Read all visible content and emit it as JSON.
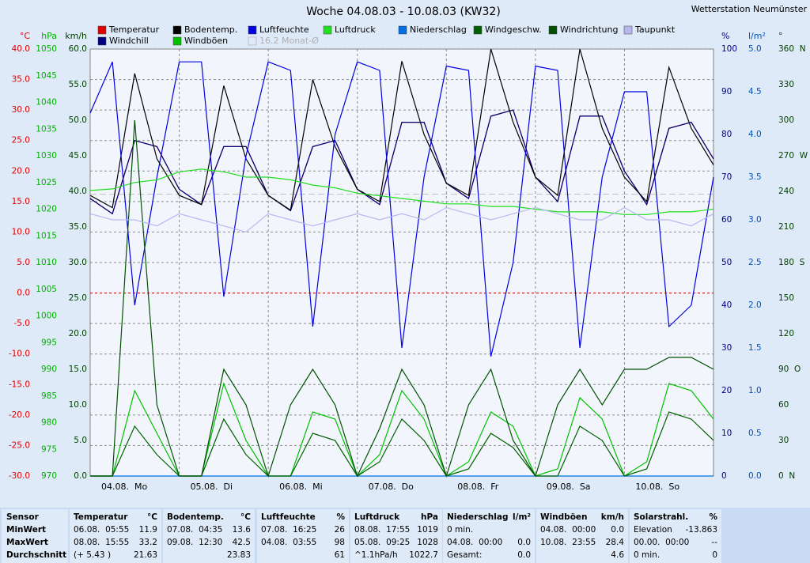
{
  "header": {
    "station": "Wetterstation Neumünster"
  },
  "chart_data": {
    "type": "line",
    "title": "Woche 04.08.03 - 10.08.03 (KW32)",
    "x": [
      0,
      6,
      12,
      18,
      24,
      30,
      36,
      42,
      48,
      54,
      60,
      66,
      72,
      78,
      84,
      90,
      96,
      102,
      108,
      114,
      120,
      126,
      132,
      138,
      144,
      150,
      156,
      162,
      168
    ],
    "xlim": [
      0,
      168
    ],
    "xticks": [
      {
        "value": 0,
        "label": "04.08.  Mo"
      },
      {
        "value": 24,
        "label": "05.08.  Di"
      },
      {
        "value": 48,
        "label": "06.08.  Mi"
      },
      {
        "value": 72,
        "label": "07.08.  Do"
      },
      {
        "value": 96,
        "label": "08.08.  Fr"
      },
      {
        "value": 120,
        "label": "09.08.  Sa"
      },
      {
        "value": 144,
        "label": "10.08.  So"
      }
    ],
    "grid": true,
    "axes": {
      "temp": {
        "label": "°C",
        "color": "#e00000",
        "lim": [
          -30,
          40
        ],
        "ticks": [
          {
            "value": -30,
            "label": "-30.0"
          },
          {
            "value": -25,
            "label": "-25.0"
          },
          {
            "value": -20,
            "label": "-20.0"
          },
          {
            "value": -15,
            "label": "-15.0"
          },
          {
            "value": -10,
            "label": "-10.0"
          },
          {
            "value": -5,
            "label": "-5.0"
          },
          {
            "value": 0,
            "label": "0.0"
          },
          {
            "value": 5,
            "label": "5.0"
          },
          {
            "value": 10,
            "label": "10.0"
          },
          {
            "value": 15,
            "label": "15.0"
          },
          {
            "value": 20,
            "label": "20.0"
          },
          {
            "value": 25,
            "label": "25.0"
          },
          {
            "value": 30,
            "label": "30.0"
          },
          {
            "value": 35,
            "label": "35.0"
          },
          {
            "value": 40,
            "label": "40.0"
          }
        ]
      },
      "hpa": {
        "label": "hPa",
        "color": "#00b000",
        "lim": [
          970,
          1050
        ],
        "ticks": [
          970,
          975,
          980,
          985,
          990,
          995,
          1000,
          1005,
          1010,
          1015,
          1020,
          1025,
          1030,
          1035,
          1040,
          1045,
          1050
        ]
      },
      "kmh": {
        "label": "km/h",
        "color": "#004000",
        "lim": [
          0,
          60
        ],
        "ticks": [
          {
            "value": 0,
            "label": "0.0"
          },
          {
            "value": 5,
            "label": "5.0"
          },
          {
            "value": 10,
            "label": "10.0"
          },
          {
            "value": 15,
            "label": "15.0"
          },
          {
            "value": 20,
            "label": "20.0"
          },
          {
            "value": 25,
            "label": "25.0"
          },
          {
            "value": 30,
            "label": "30.0"
          },
          {
            "value": 35,
            "label": "35.0"
          },
          {
            "value": 40,
            "label": "40.0"
          },
          {
            "value": 45,
            "label": "45.0"
          },
          {
            "value": 50,
            "label": "50.0"
          },
          {
            "value": 55,
            "label": "55.0"
          },
          {
            "value": 60,
            "label": "60.0"
          }
        ]
      },
      "pct": {
        "label": "%",
        "color": "#000090",
        "lim": [
          0,
          100
        ],
        "ticks": [
          0,
          10,
          20,
          30,
          40,
          50,
          60,
          70,
          80,
          90,
          100
        ]
      },
      "lm2": {
        "label": "l/m²",
        "color": "#0050c0",
        "lim": [
          0,
          5
        ],
        "ticks": [
          {
            "value": 0,
            "label": "0.0"
          },
          {
            "value": 0.5,
            "label": "0.5"
          },
          {
            "value": 1,
            "label": "1.0"
          },
          {
            "value": 1.5,
            "label": "1.5"
          },
          {
            "value": 2,
            "label": "2.0"
          },
          {
            "value": 2.5,
            "label": "2.5"
          },
          {
            "value": 3,
            "label": "3.0"
          },
          {
            "value": 3.5,
            "label": "3.5"
          },
          {
            "value": 4,
            "label": "4.0"
          },
          {
            "value": 4.5,
            "label": "4.5"
          },
          {
            "value": 5,
            "label": "5.0"
          }
        ]
      },
      "deg": {
        "label": "°",
        "color": "#004000",
        "lim": [
          0,
          360
        ],
        "ticks": [
          {
            "value": 0,
            "label": "0  N"
          },
          30,
          60,
          {
            "value": 90,
            "label": "90  O"
          },
          120,
          150,
          {
            "value": 180,
            "label": "180  S"
          },
          210,
          240,
          {
            "value": 270,
            "label": "270  W"
          },
          300,
          330,
          {
            "value": 360,
            "label": "360  N"
          }
        ]
      }
    },
    "monthly_avg": {
      "label": "16.2 Monat-Ø",
      "value": 16.2,
      "color": "#c0c0c0",
      "axis": "temp"
    },
    "series": [
      {
        "name": "Temperatur",
        "color": "#e00000",
        "axis": "temp",
        "values": [
          15.5,
          13,
          25,
          24,
          17,
          14.5,
          24,
          24,
          16,
          13.5,
          24,
          25,
          17,
          14.5,
          28,
          28,
          18,
          15.5,
          29,
          30,
          19,
          15,
          29,
          29,
          20,
          14.5,
          27,
          28,
          22
        ]
      },
      {
        "name": "Windchill",
        "color": "#000080",
        "axis": "temp",
        "values": [
          15.5,
          13,
          25,
          24,
          17,
          14.5,
          24,
          24,
          16,
          13.5,
          24,
          25,
          17,
          14.5,
          28,
          28,
          18,
          15.5,
          29,
          30,
          19,
          15,
          29,
          29,
          20,
          14.5,
          27,
          28,
          22
        ]
      },
      {
        "name": "Bodentemp.",
        "color": "#000000",
        "axis": "temp",
        "values": [
          16,
          14,
          36,
          22,
          16,
          14.5,
          34,
          22,
          16,
          13.6,
          35,
          24,
          17,
          15,
          38,
          26,
          18,
          16,
          40,
          28,
          19,
          16,
          40,
          27,
          19,
          15,
          37,
          27,
          21
        ]
      },
      {
        "name": "Windböen",
        "color": "#00c000",
        "axis": "kmh",
        "values": [
          0,
          0,
          12,
          6,
          0,
          0,
          13,
          5,
          0,
          0,
          9,
          8,
          0,
          3,
          12,
          8,
          0,
          2,
          9,
          7,
          0,
          1,
          11,
          8,
          0,
          2,
          13,
          12,
          8
        ]
      },
      {
        "name": "Luftfeuchte",
        "color": "#0000e0",
        "axis": "pct",
        "values": [
          85,
          97,
          40,
          70,
          97,
          97,
          42,
          75,
          97,
          95,
          35,
          80,
          97,
          95,
          30,
          70,
          96,
          95,
          28,
          50,
          96,
          95,
          30,
          70,
          90,
          90,
          35,
          40,
          70
        ]
      },
      {
        "name": "Luftdruck",
        "color": "#20e020",
        "axis": "hpa",
        "values": [
          1023.5,
          1023.8,
          1025,
          1025.5,
          1027,
          1027.5,
          1027,
          1026,
          1026,
          1025.5,
          1024.5,
          1024,
          1023,
          1022.5,
          1022,
          1021.5,
          1021,
          1021,
          1020.5,
          1020.5,
          1020,
          1019.5,
          1019.5,
          1019.5,
          1019,
          1019,
          1019.5,
          1019.5,
          1020
        ]
      },
      {
        "name": "Niederschlag",
        "color": "#0070e0",
        "axis": "lm2",
        "values": [
          0,
          0,
          0,
          0,
          0,
          0,
          0,
          0,
          0,
          0,
          0,
          0,
          0,
          0,
          0,
          0,
          0,
          0,
          0,
          0,
          0,
          0,
          0,
          0,
          0,
          0,
          0,
          0,
          0
        ]
      },
      {
        "name": "Windgeschw.",
        "color": "#006000",
        "axis": "kmh",
        "values": [
          0,
          0,
          7,
          3,
          0,
          0,
          8,
          3,
          0,
          0,
          6,
          5,
          0,
          2,
          8,
          5,
          0,
          1,
          6,
          4,
          0,
          0,
          7,
          5,
          0,
          1,
          9,
          8,
          5
        ]
      },
      {
        "name": "Windrichtung",
        "color": "#005000",
        "axis": "deg",
        "values": [
          0,
          0,
          300,
          60,
          0,
          0,
          90,
          60,
          0,
          60,
          90,
          60,
          0,
          40,
          90,
          60,
          0,
          60,
          90,
          30,
          0,
          60,
          90,
          60,
          90,
          90,
          100,
          100,
          90
        ]
      },
      {
        "name": "Taupunkt",
        "color": "#b8b8f0",
        "axis": "temp",
        "values": [
          13,
          12,
          12,
          11,
          13,
          12,
          11,
          10,
          13,
          12,
          11,
          12,
          13,
          12,
          13,
          12,
          14,
          13,
          12,
          13,
          14,
          13,
          12,
          12,
          14,
          12,
          12,
          11,
          13
        ]
      }
    ]
  },
  "table": {
    "row_labels": [
      "Sensor",
      "MinWert",
      "MaxWert",
      "Durchschnitt"
    ],
    "columns": [
      {
        "name": "Temperatur",
        "unit": "°C",
        "rows": [
          {
            "left": "06.08.  05:55",
            "right": "11.9"
          },
          {
            "left": "08.08.  15:55",
            "right": "33.2"
          },
          {
            "left": "(+ 5.43 )",
            "right": "21.63"
          }
        ]
      },
      {
        "name": "Bodentemp.",
        "unit": "°C",
        "rows": [
          {
            "left": "07.08.  04:35",
            "right": "13.6"
          },
          {
            "left": "09.08.  12:30",
            "right": "42.5"
          },
          {
            "right": "23.83"
          }
        ]
      },
      {
        "name": "Luftfeuchte",
        "unit": "%",
        "rows": [
          {
            "left": "07.08.  16:25",
            "right": "26"
          },
          {
            "left": "04.08.  03:55",
            "right": "98"
          },
          {
            "right": "61"
          }
        ]
      },
      {
        "name": "Luftdruck",
        "unit": "hPa",
        "rows": [
          {
            "left": "08.08.  17:55",
            "right": "1019"
          },
          {
            "left": "05.08.  09:25",
            "right": "1028"
          },
          {
            "left": "^1.1hPa/h",
            "right": "1022.7"
          }
        ]
      },
      {
        "name": "Niederschlag",
        "unit": "l/m²",
        "rows": [
          {
            "left": "0 min."
          },
          {
            "left": "04.08.  00:00",
            "right": "0.0"
          },
          {
            "left": "Gesamt:",
            "right": "0.0"
          }
        ]
      },
      {
        "name": "Windböen",
        "unit": "km/h",
        "rows": [
          {
            "left": "04.08.  00:00",
            "right": "0.0"
          },
          {
            "left": "10.08.  23:55",
            "right": "28.4"
          },
          {
            "right": "4.6"
          }
        ]
      },
      {
        "name": "Solarstrahl.",
        "unit": "%",
        "rows": [
          {
            "left": "Elevation",
            "right": "-13.863"
          },
          {
            "left": "00.00.  00:00",
            "right": "--"
          },
          {
            "left": "0 min.",
            "right": "0"
          }
        ]
      }
    ]
  }
}
